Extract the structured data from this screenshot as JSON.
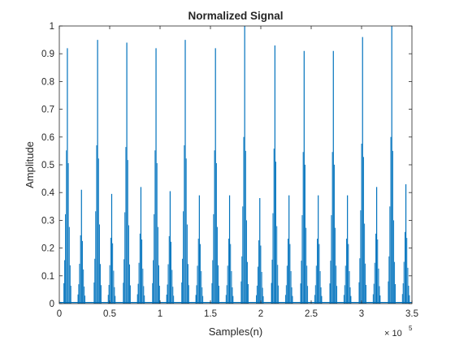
{
  "chart_data": {
    "type": "line",
    "title": "Normalized Signal",
    "xlabel": "Samples(n)",
    "ylabel": "Amplitude",
    "xlim": [
      0,
      350000
    ],
    "ylim": [
      0,
      1
    ],
    "x_ticks": [
      0,
      50000,
      100000,
      150000,
      200000,
      250000,
      300000,
      350000
    ],
    "x_tick_labels": [
      "0",
      "0.5",
      "1",
      "1.5",
      "2",
      "2.5",
      "3",
      "3.5"
    ],
    "x_exponent_label": "× 10",
    "x_exponent_power": "5",
    "y_ticks": [
      0,
      0.1,
      0.2,
      0.3,
      0.4,
      0.5,
      0.6,
      0.7,
      0.8,
      0.9,
      1
    ],
    "y_tick_labels": [
      "0",
      "0.1",
      "0.2",
      "0.3",
      "0.4",
      "0.5",
      "0.6",
      "0.7",
      "0.8",
      "0.9",
      "1"
    ],
    "grid": false,
    "line_color": "#0072BD",
    "series": [
      {
        "peaks": [
          {
            "x": 8000,
            "y": 0.92
          },
          {
            "x": 22000,
            "y": 0.41
          },
          {
            "x": 38000,
            "y": 0.95
          },
          {
            "x": 52000,
            "y": 0.395
          },
          {
            "x": 67000,
            "y": 0.94
          },
          {
            "x": 81000,
            "y": 0.42
          },
          {
            "x": 96000,
            "y": 0.92
          },
          {
            "x": 110000,
            "y": 0.405
          },
          {
            "x": 125000,
            "y": 0.95
          },
          {
            "x": 139000,
            "y": 0.39
          },
          {
            "x": 155000,
            "y": 0.92
          },
          {
            "x": 169000,
            "y": 0.39
          },
          {
            "x": 184000,
            "y": 1.0
          },
          {
            "x": 199000,
            "y": 0.38
          },
          {
            "x": 214000,
            "y": 0.93
          },
          {
            "x": 228000,
            "y": 0.39
          },
          {
            "x": 243000,
            "y": 0.91
          },
          {
            "x": 257000,
            "y": 0.39
          },
          {
            "x": 272000,
            "y": 0.91
          },
          {
            "x": 286000,
            "y": 0.39
          },
          {
            "x": 301000,
            "y": 0.96
          },
          {
            "x": 315000,
            "y": 0.42
          },
          {
            "x": 330000,
            "y": 1.0
          },
          {
            "x": 344000,
            "y": 0.43
          }
        ]
      }
    ]
  }
}
